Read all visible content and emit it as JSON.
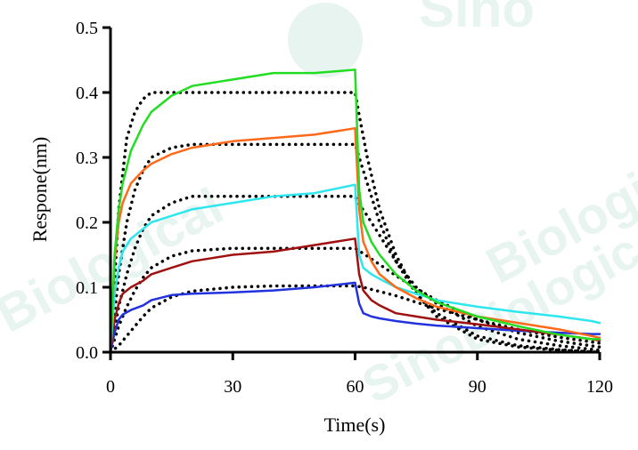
{
  "chart_data": {
    "type": "line",
    "title": "",
    "xlabel": "Time(s)",
    "ylabel": "Respone(nm)",
    "xlim": [
      0,
      120
    ],
    "ylim": [
      0,
      0.5
    ],
    "xticks": [
      0,
      30,
      60,
      90,
      120
    ],
    "yticks": [
      0.0,
      0.1,
      0.2,
      0.3,
      0.4,
      0.5
    ],
    "xtick_labels": [
      "0",
      "30",
      "60",
      "90",
      "120"
    ],
    "ytick_labels": [
      "0.0",
      "0.1",
      "0.2",
      "0.3",
      "0.4",
      "0.5"
    ],
    "grid": false,
    "legend": "none",
    "watermark": "Sino Biological",
    "colors": {
      "green": "#22dd22",
      "orange": "#ff6a1a",
      "cyan": "#2ee6ee",
      "darkred": "#a01010",
      "blue": "#2233dd",
      "fit": "#000000"
    },
    "measured_series": [
      {
        "color": "#22dd22",
        "x": [
          0,
          1,
          2,
          3,
          5,
          8,
          10,
          15,
          20,
          30,
          40,
          50,
          60,
          61,
          62,
          64,
          66,
          70,
          75,
          80,
          90,
          100,
          110,
          118,
          120
        ],
        "y": [
          0,
          0.15,
          0.22,
          0.26,
          0.31,
          0.35,
          0.37,
          0.395,
          0.41,
          0.42,
          0.43,
          0.43,
          0.435,
          0.25,
          0.2,
          0.17,
          0.15,
          0.12,
          0.095,
          0.077,
          0.055,
          0.04,
          0.027,
          0.02,
          0.02
        ]
      },
      {
        "color": "#ff6a1a",
        "x": [
          0,
          1,
          2,
          3,
          5,
          8,
          10,
          15,
          20,
          30,
          40,
          50,
          60,
          61,
          62,
          64,
          66,
          70,
          75,
          80,
          90,
          100,
          110,
          118,
          120
        ],
        "y": [
          0,
          0.14,
          0.2,
          0.23,
          0.26,
          0.28,
          0.29,
          0.305,
          0.315,
          0.325,
          0.33,
          0.335,
          0.345,
          0.22,
          0.17,
          0.14,
          0.12,
          0.1,
          0.083,
          0.07,
          0.055,
          0.045,
          0.035,
          0.025,
          0.022
        ]
      },
      {
        "color": "#2ee6ee",
        "x": [
          0,
          1,
          2,
          3,
          5,
          8,
          10,
          15,
          20,
          30,
          40,
          50,
          60,
          61,
          62,
          64,
          66,
          70,
          75,
          80,
          90,
          100,
          110,
          118,
          120
        ],
        "y": [
          0,
          0.09,
          0.13,
          0.155,
          0.175,
          0.19,
          0.2,
          0.21,
          0.22,
          0.23,
          0.24,
          0.245,
          0.258,
          0.15,
          0.13,
          0.12,
          0.113,
          0.1,
          0.09,
          0.08,
          0.07,
          0.062,
          0.055,
          0.048,
          0.045
        ]
      },
      {
        "color": "#a01010",
        "x": [
          0,
          1,
          2,
          3,
          5,
          8,
          10,
          15,
          20,
          30,
          40,
          50,
          60,
          61,
          62,
          64,
          66,
          70,
          75,
          80,
          90,
          100,
          110,
          118,
          120
        ],
        "y": [
          0,
          0.05,
          0.075,
          0.09,
          0.1,
          0.11,
          0.12,
          0.13,
          0.14,
          0.15,
          0.155,
          0.165,
          0.175,
          0.12,
          0.095,
          0.08,
          0.072,
          0.06,
          0.055,
          0.05,
          0.043,
          0.035,
          0.027,
          0.02,
          0.018
        ]
      },
      {
        "color": "#2233dd",
        "x": [
          0,
          1,
          2,
          3,
          5,
          8,
          10,
          15,
          20,
          30,
          40,
          50,
          60,
          61,
          62,
          64,
          66,
          70,
          75,
          80,
          90,
          100,
          110,
          118,
          120
        ],
        "y": [
          0,
          0.03,
          0.05,
          0.058,
          0.065,
          0.072,
          0.08,
          0.088,
          0.09,
          0.092,
          0.095,
          0.1,
          0.107,
          0.075,
          0.06,
          0.055,
          0.052,
          0.048,
          0.044,
          0.041,
          0.037,
          0.033,
          0.03,
          0.028,
          0.028
        ]
      }
    ],
    "fit_series": [
      {
        "color": "#000000",
        "x": [
          0,
          2,
          4,
          6,
          8,
          10,
          20,
          30,
          40,
          50,
          60,
          61,
          63,
          66,
          70,
          75,
          80,
          90,
          100,
          110,
          120
        ],
        "y": [
          0,
          0.22,
          0.33,
          0.37,
          0.39,
          0.4,
          0.4,
          0.4,
          0.4,
          0.4,
          0.4,
          0.365,
          0.3,
          0.22,
          0.15,
          0.09,
          0.055,
          0.02,
          0.008,
          0.003,
          0.0
        ]
      },
      {
        "color": "#000000",
        "x": [
          0,
          2,
          4,
          6,
          8,
          10,
          15,
          20,
          30,
          40,
          50,
          60,
          61,
          63,
          66,
          70,
          75,
          80,
          90,
          100,
          110,
          120
        ],
        "y": [
          0,
          0.12,
          0.2,
          0.25,
          0.28,
          0.3,
          0.315,
          0.32,
          0.32,
          0.32,
          0.32,
          0.32,
          0.3,
          0.26,
          0.2,
          0.14,
          0.09,
          0.06,
          0.025,
          0.01,
          0.004,
          0.0
        ]
      },
      {
        "color": "#000000",
        "x": [
          0,
          2,
          4,
          6,
          8,
          10,
          15,
          20,
          30,
          40,
          50,
          60,
          61,
          63,
          66,
          70,
          75,
          80,
          90,
          100,
          110,
          120
        ],
        "y": [
          0,
          0.07,
          0.12,
          0.16,
          0.19,
          0.21,
          0.23,
          0.24,
          0.24,
          0.24,
          0.24,
          0.24,
          0.228,
          0.21,
          0.18,
          0.14,
          0.1,
          0.075,
          0.04,
          0.02,
          0.01,
          0.003
        ]
      },
      {
        "color": "#000000",
        "x": [
          0,
          2,
          4,
          6,
          8,
          10,
          15,
          20,
          30,
          40,
          50,
          60,
          61,
          63,
          66,
          70,
          75,
          80,
          90,
          100,
          110,
          120
        ],
        "y": [
          0,
          0.04,
          0.07,
          0.095,
          0.115,
          0.13,
          0.148,
          0.156,
          0.16,
          0.16,
          0.16,
          0.16,
          0.156,
          0.148,
          0.135,
          0.118,
          0.098,
          0.08,
          0.05,
          0.03,
          0.017,
          0.008
        ]
      },
      {
        "color": "#000000",
        "x": [
          0,
          2,
          4,
          6,
          8,
          10,
          15,
          20,
          30,
          40,
          50,
          60,
          62,
          65,
          70,
          75,
          80,
          90,
          100,
          110,
          120
        ],
        "y": [
          0,
          0.01,
          0.025,
          0.04,
          0.055,
          0.068,
          0.085,
          0.094,
          0.1,
          0.102,
          0.102,
          0.102,
          0.1,
          0.095,
          0.087,
          0.077,
          0.067,
          0.05,
          0.035,
          0.023,
          0.014
        ]
      }
    ]
  }
}
